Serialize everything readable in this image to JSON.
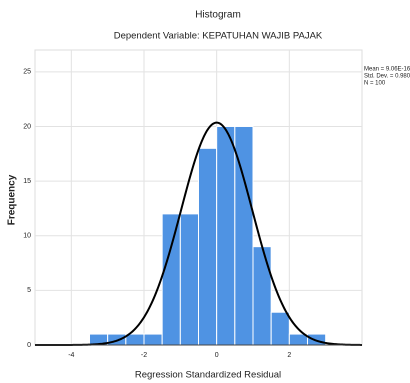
{
  "chart_data": {
    "type": "histogram",
    "title": "Histogram",
    "subtitle": "Dependent Variable: KEPATUHAN WAJIB PAJAK",
    "xlabel": "Regression Standardized Residual",
    "ylabel": "Frequency",
    "bins": [
      -3.5,
      -3.0,
      -2.5,
      -2.0,
      -1.5,
      -1.0,
      -0.5,
      0.0,
      0.5,
      1.0,
      1.5,
      2.0,
      2.5,
      3.0
    ],
    "values": [
      1,
      1,
      1,
      1,
      12,
      12,
      18,
      20,
      20,
      9,
      3,
      1,
      1
    ],
    "color": "#4f93e3",
    "curve_color": "#000000",
    "stats": [
      {
        "value": 9.06e-16,
        "label": "Mean = 9.06E-16"
      },
      {
        "value": 0.98,
        "label": "Std. Dev. = 0.980"
      },
      {
        "value": 100,
        "label": "N = 100"
      }
    ],
    "xlim": [
      -5,
      4
    ],
    "ylim": [
      0,
      27
    ],
    "xticks": [
      -4,
      -2,
      0,
      2
    ],
    "yticks": [
      0,
      5,
      10,
      15,
      20,
      25
    ],
    "grid": true
  }
}
